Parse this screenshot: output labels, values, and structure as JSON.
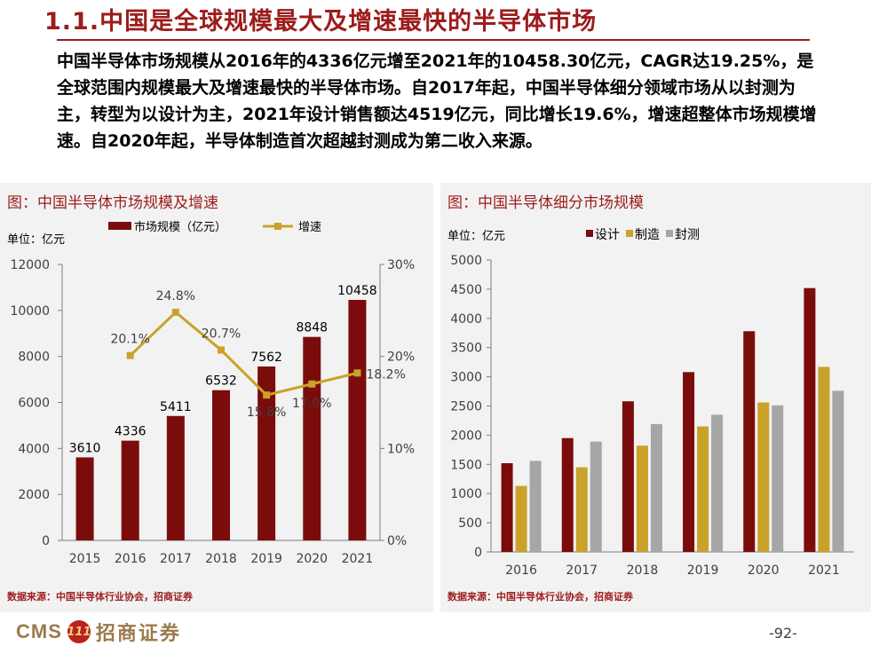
{
  "slide": {
    "title": "1.1.中国是全球规模最大及增速最快的半导体市场",
    "summary": "中国半导体市场规模从2016年的4336亿元增至2021年的10458.30亿元，CAGR达19.25%，是全球范围内规模最大及增速最快的半导体市场。自2017年起，中国半导体细分领域市场从以封测为主，转型为以设计为主，2021年设计销售额达4519亿元，同比增长19.6%，增速超整体市场规模增速。自2020年起，半导体制造首次超越封测成为第二收入来源。",
    "page_number": "-92-"
  },
  "left_panel": {
    "title": "图：中国半导体市场规模及增速",
    "source": "数据来源：中国半导体行业协会，招商证券"
  },
  "right_panel": {
    "title": "图：中国半导体细分市场规模",
    "source": "数据来源：中国半导体行业协会，招商证券"
  },
  "logo": {
    "text": "CMS",
    "badge": "111",
    "cn_name": "招商证券"
  },
  "colors": {
    "accent": "#9c1c1c",
    "bar_dark_red": "#7b0c0c",
    "line_gold": "#c9a22a",
    "bar_gold": "#c9a22a",
    "bar_gray": "#a6a6a6",
    "panel_bg": "#f2f2f2",
    "logo_gold": "#9c7a4e"
  },
  "chart_data": [
    {
      "type": "bar",
      "unit_label": "单位：亿元",
      "categories": [
        "2015",
        "2016",
        "2017",
        "2018",
        "2019",
        "2020",
        "2021"
      ],
      "series": [
        {
          "name": "市场规模（亿元）",
          "values": [
            3610,
            4336,
            5411,
            6532,
            7562,
            8848,
            10458
          ],
          "color": "#7b0c0c"
        }
      ],
      "secondary_line": {
        "name": "增速",
        "values": [
          null,
          20.1,
          24.8,
          20.7,
          15.8,
          17.0,
          18.2
        ],
        "labels": [
          "",
          "20.1%",
          "24.8%",
          "20.7%",
          "15.8%",
          "17.0%",
          "18.2%"
        ],
        "color": "#c9a22a"
      },
      "ylim": [
        0,
        12000
      ],
      "yticks": [
        "0",
        "2000",
        "4000",
        "6000",
        "8000",
        "10000",
        "12000"
      ],
      "y2lim": [
        0,
        30
      ],
      "y2ticks": [
        "0%",
        "10%",
        "20%",
        "30%"
      ],
      "bar_labels": [
        "3610",
        "4336",
        "5411",
        "6532",
        "7562",
        "8848",
        "10458"
      ],
      "grid": false,
      "legend": "top"
    },
    {
      "type": "bar",
      "unit_label": "单位：亿元",
      "categories": [
        "2016",
        "2017",
        "2018",
        "2019",
        "2020",
        "2021"
      ],
      "series": [
        {
          "name": "设计",
          "values": [
            1520,
            1950,
            2580,
            3080,
            3780,
            4519
          ],
          "color": "#7b0c0c"
        },
        {
          "name": "制造",
          "values": [
            1130,
            1450,
            1820,
            2150,
            2560,
            3170
          ],
          "color": "#c9a22a"
        },
        {
          "name": "封测",
          "values": [
            1560,
            1890,
            2190,
            2350,
            2510,
            2760
          ],
          "color": "#a6a6a6"
        }
      ],
      "ylim": [
        0,
        5000
      ],
      "yticks": [
        "0",
        "500",
        "1000",
        "1500",
        "2000",
        "2500",
        "3000",
        "3500",
        "4000",
        "4500",
        "5000"
      ],
      "grid": false,
      "legend": "top"
    }
  ]
}
